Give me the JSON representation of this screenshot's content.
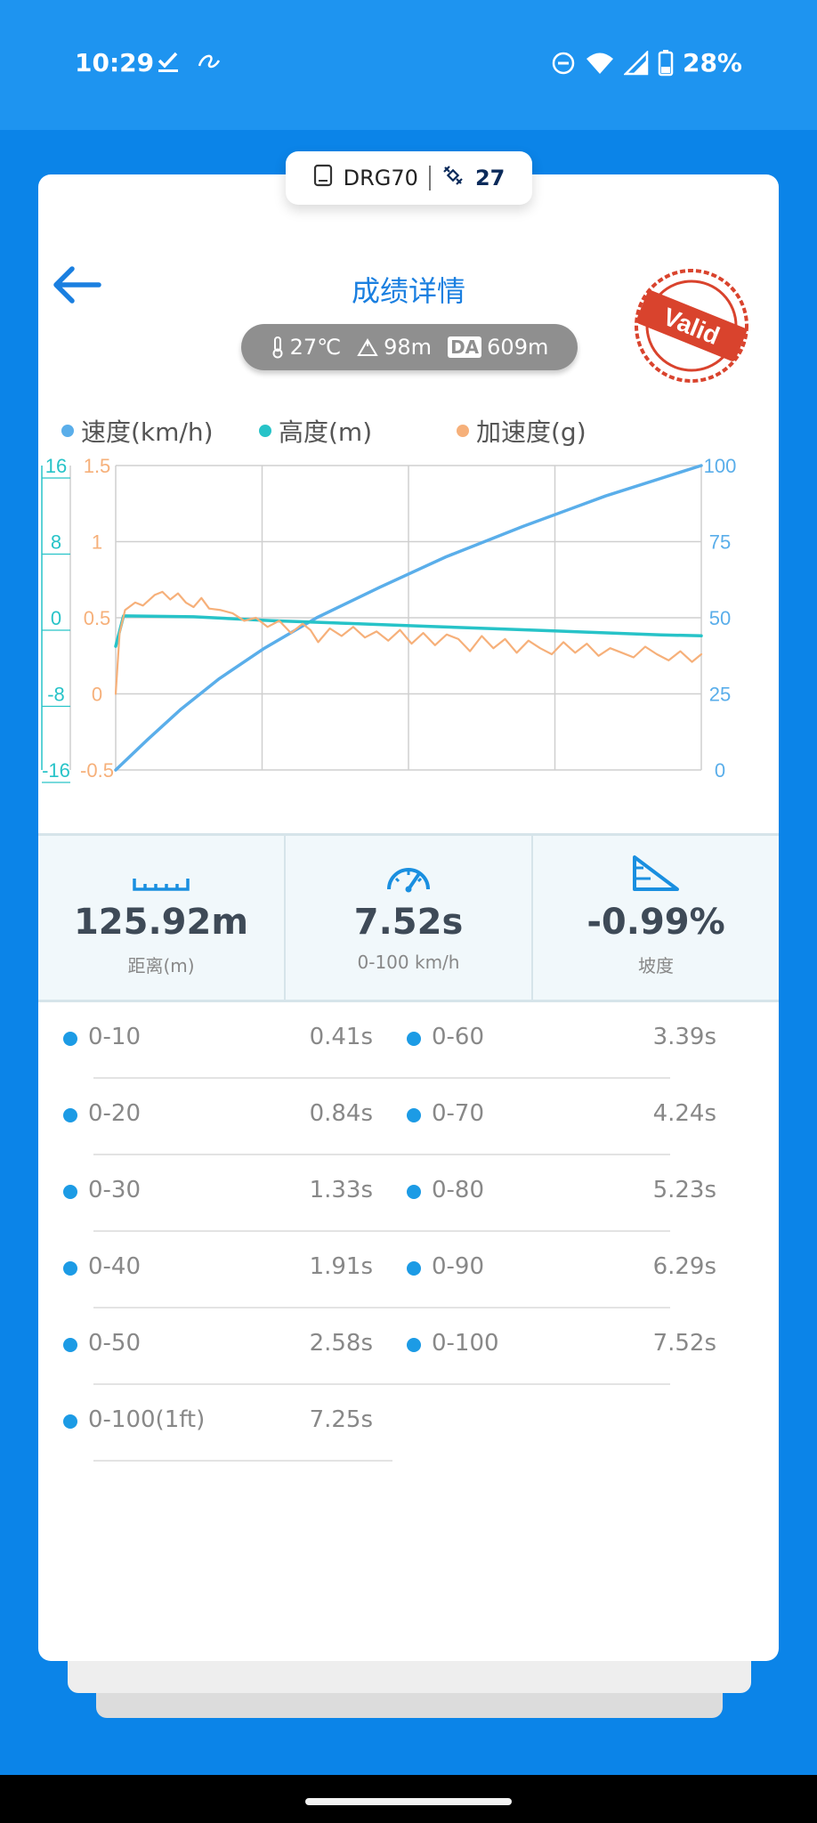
{
  "status": {
    "time": "10:29",
    "battery": "28%"
  },
  "device": {
    "name": "DRG70",
    "satellites": "27"
  },
  "header": {
    "title": "成绩详情",
    "stamp": "Valid"
  },
  "weather": {
    "temperature": "27℃",
    "altitude": "98m",
    "da_label": "DA",
    "density_altitude": "609m"
  },
  "legend": {
    "speed": "速度(km/h)",
    "altitude": "高度(m)",
    "accel": "加速度(g)"
  },
  "colors": {
    "accent": "#1a7fe0",
    "speed": "#5aaeea",
    "altitude": "#27c3c8",
    "accel": "#f6b07a",
    "stamp": "#d9432d"
  },
  "chart_data": {
    "type": "line",
    "x_range": [
      0,
      7.52
    ],
    "axes": {
      "speed": {
        "ticks": [
          "100",
          "75",
          "50",
          "25",
          "0"
        ],
        "ylim": [
          0,
          100
        ]
      },
      "altitude": {
        "ticks": [
          "16",
          "8",
          "0",
          "-8",
          "-16"
        ],
        "ylim": [
          -16,
          16
        ]
      },
      "accel": {
        "ticks": [
          "1.5",
          "1",
          "0.5",
          "0",
          "-0.5"
        ],
        "ylim": [
          -0.5,
          1.5
        ]
      }
    },
    "series": [
      {
        "name": "速度(km/h)",
        "axis": "speed",
        "x": [
          0,
          0.41,
          0.84,
          1.33,
          1.91,
          2.58,
          3.39,
          4.24,
          5.23,
          6.29,
          7.52
        ],
        "y": [
          0,
          10,
          20,
          30,
          40,
          50,
          60,
          70,
          80,
          90,
          100
        ]
      },
      {
        "name": "高度(m)",
        "axis": "altitude",
        "x": [
          0,
          0.1,
          1.0,
          2.0,
          3.0,
          4.0,
          5.0,
          6.0,
          7.0,
          7.52
        ],
        "y": [
          -3,
          0.2,
          0.1,
          -0.3,
          -0.6,
          -0.9,
          -1.2,
          -1.5,
          -1.8,
          -1.9
        ]
      },
      {
        "name": "加速度(g)",
        "axis": "accel",
        "x": [
          0,
          0.05,
          0.12,
          0.25,
          0.35,
          0.5,
          0.6,
          0.7,
          0.8,
          0.9,
          1.0,
          1.1,
          1.2,
          1.35,
          1.5,
          1.65,
          1.8,
          1.95,
          2.1,
          2.25,
          2.4,
          2.5,
          2.6,
          2.75,
          2.9,
          3.05,
          3.2,
          3.35,
          3.5,
          3.65,
          3.8,
          3.95,
          4.1,
          4.25,
          4.4,
          4.55,
          4.7,
          4.85,
          5.0,
          5.15,
          5.3,
          5.45,
          5.6,
          5.75,
          5.9,
          6.05,
          6.2,
          6.35,
          6.5,
          6.65,
          6.8,
          6.95,
          7.1,
          7.25,
          7.4,
          7.52
        ],
        "y": [
          0,
          0.4,
          0.55,
          0.6,
          0.58,
          0.65,
          0.67,
          0.62,
          0.66,
          0.6,
          0.57,
          0.63,
          0.56,
          0.55,
          0.53,
          0.48,
          0.5,
          0.44,
          0.48,
          0.4,
          0.46,
          0.42,
          0.34,
          0.43,
          0.38,
          0.44,
          0.37,
          0.41,
          0.35,
          0.42,
          0.33,
          0.4,
          0.32,
          0.39,
          0.36,
          0.28,
          0.38,
          0.3,
          0.36,
          0.27,
          0.35,
          0.3,
          0.26,
          0.34,
          0.27,
          0.33,
          0.25,
          0.3,
          0.27,
          0.24,
          0.31,
          0.26,
          0.22,
          0.28,
          0.21,
          0.26
        ]
      }
    ],
    "grid": true
  },
  "stats": {
    "distance_value": "125.92m",
    "distance_label": "距离(m)",
    "time_value": "7.52s",
    "time_label": "0-100 km/h",
    "slope_value": "-0.99%",
    "slope_label": "坡度"
  },
  "splits": [
    {
      "label": "0-10",
      "value": "0.41s"
    },
    {
      "label": "0-20",
      "value": "0.84s"
    },
    {
      "label": "0-30",
      "value": "1.33s"
    },
    {
      "label": "0-40",
      "value": "1.91s"
    },
    {
      "label": "0-50",
      "value": "2.58s"
    },
    {
      "label": "0-100(1ft)",
      "value": "7.25s"
    },
    {
      "label": "0-60",
      "value": "3.39s"
    },
    {
      "label": "0-70",
      "value": "4.24s"
    },
    {
      "label": "0-80",
      "value": "5.23s"
    },
    {
      "label": "0-90",
      "value": "6.29s"
    },
    {
      "label": "0-100",
      "value": "7.52s"
    }
  ]
}
